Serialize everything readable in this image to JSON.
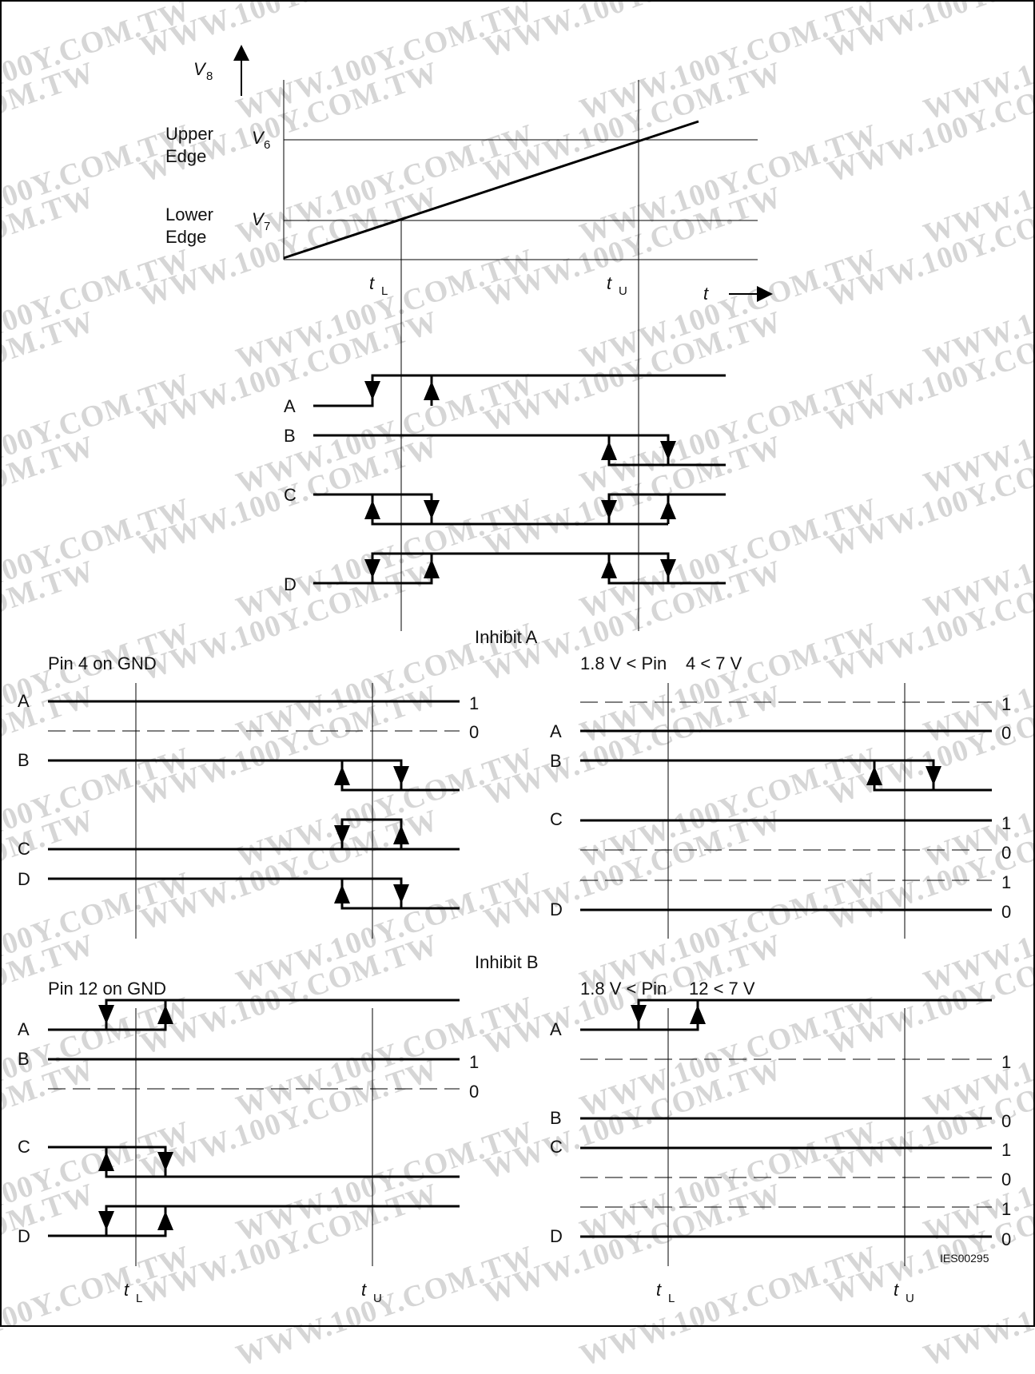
{
  "watermark": "WWW.100Y.COM.TW",
  "figure_id": "IES00295",
  "top": {
    "y_axis_label": "V",
    "y_axis_sub": "8",
    "upper_edge_label": "Upper Edge",
    "lower_edge_label": "Lower Edge",
    "v6_label": "V",
    "v6_sub": "6",
    "v7_label": "V",
    "v7_sub": "7",
    "tl_label": "t",
    "tl_sub": "L",
    "tu_label": "t",
    "tu_sub": "U",
    "t_axis_label": "t",
    "signals": [
      "A",
      "B",
      "C",
      "D"
    ]
  },
  "inhibit_a": {
    "title": "Inhibit A",
    "left_condition": "Pin 4 on GND",
    "right_condition_a": "1.8 V < Pin",
    "right_condition_b": "4 < 7 V",
    "left_signals": [
      "A",
      "B",
      "C",
      "D"
    ],
    "right_signals": [
      "A",
      "B",
      "C",
      "D"
    ],
    "levels": [
      "1",
      "0"
    ]
  },
  "inhibit_b": {
    "title": "Inhibit B",
    "left_condition": "Pin 12 on GND",
    "right_condition_a": "1.8 V < Pin",
    "right_condition_b": "12 < 7 V",
    "left_signals": [
      "A",
      "B",
      "C",
      "D"
    ],
    "right_signals": [
      "A",
      "B",
      "C",
      "D"
    ],
    "levels": [
      "1",
      "0"
    ],
    "tl_label": "t",
    "tl_sub": "L",
    "tu_label": "t",
    "tu_sub": "U"
  }
}
